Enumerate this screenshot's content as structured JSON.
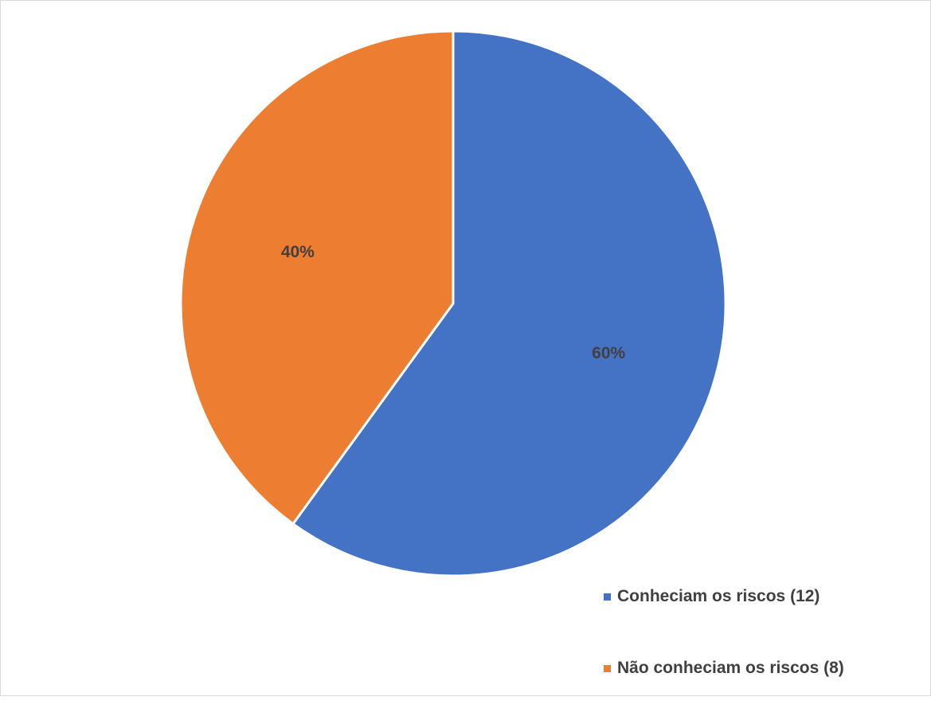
{
  "chart_data": {
    "type": "pie",
    "title": "",
    "legend_position": "bottom-right",
    "slices": [
      {
        "name": "Conheciam os riscos (12)",
        "value": 12,
        "percent_label": "60%",
        "color": "#4472C4"
      },
      {
        "name": "Não conheciam os riscos (8)",
        "value": 8,
        "percent_label": "40%",
        "color": "#ED7D31"
      }
    ]
  }
}
